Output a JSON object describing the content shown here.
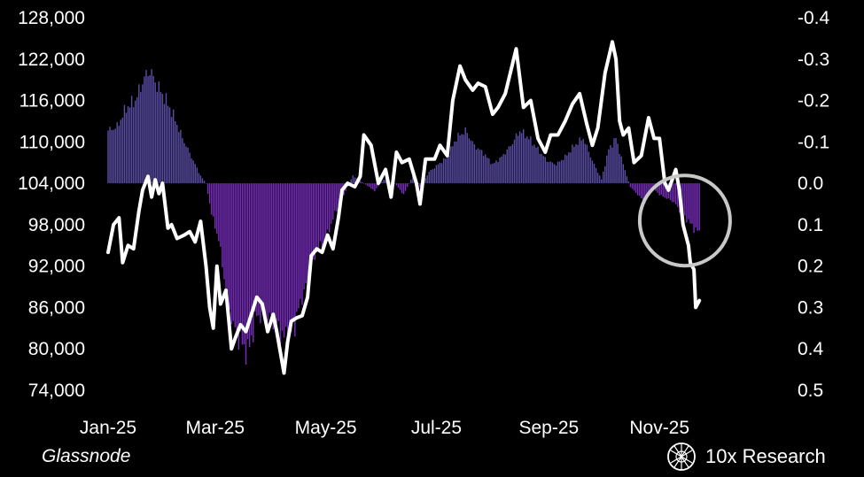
{
  "source": "Glassnode",
  "brand": {
    "name": "10x Research",
    "logo_icon": "lattice-circle-logo-icon"
  },
  "colors": {
    "background": "#000000",
    "price_line": "#ffffff",
    "bar_positive": "#5b4ea8",
    "bar_negative": "#7a2fc0",
    "highlight_circle": "#c8c8c8",
    "text": "#ffffff"
  },
  "chart_data": {
    "type": "bar+line",
    "title": "",
    "xlabel": "",
    "ylabel": "",
    "x_tick_labels": [
      "Jan-25",
      "Mar-25",
      "May-25",
      "Jul-25",
      "Sep-25",
      "Nov-25"
    ],
    "x_tick_dates": [
      "2025-01-01",
      "2025-03-01",
      "2025-05-01",
      "2025-07-01",
      "2025-09-01",
      "2025-11-01"
    ],
    "xlim": [
      "2025-01-01",
      "2025-12-31"
    ],
    "left_axis": {
      "tick_labels": [
        "128,000",
        "122,000",
        "116,000",
        "110,000",
        "104,000",
        "98,000",
        "92,000",
        "86,000",
        "80,000",
        "74,000"
      ],
      "ylim": [
        74000,
        128000
      ]
    },
    "right_axis": {
      "tick_labels": [
        "-0.4",
        "-0.3",
        "-0.2",
        "-0.1",
        "0.0",
        "0.1",
        "0.2",
        "0.3",
        "0.4",
        "0.5"
      ],
      "ylim": [
        -0.4,
        0.5
      ],
      "inverted": true
    },
    "annotation": "circle around early-to-mid November negative readings",
    "annotation_center": {
      "date": "2025-11-15",
      "value": 0.09
    },
    "series": [
      {
        "type": "line",
        "axis": "left",
        "points": [
          [
            "2025-01-01",
            94000
          ],
          [
            "2025-01-04",
            98000
          ],
          [
            "2025-01-07",
            99000
          ],
          [
            "2025-01-09",
            92500
          ],
          [
            "2025-01-12",
            95000
          ],
          [
            "2025-01-15",
            94500
          ],
          [
            "2025-01-18",
            100000
          ],
          [
            "2025-01-20",
            103000
          ],
          [
            "2025-01-23",
            105000
          ],
          [
            "2025-01-25",
            102000
          ],
          [
            "2025-01-27",
            104500
          ],
          [
            "2025-01-29",
            102500
          ],
          [
            "2025-01-31",
            104000
          ],
          [
            "2025-02-03",
            97500
          ],
          [
            "2025-02-05",
            98000
          ],
          [
            "2025-02-08",
            96000
          ],
          [
            "2025-02-12",
            96500
          ],
          [
            "2025-02-15",
            97000
          ],
          [
            "2025-02-18",
            95500
          ],
          [
            "2025-02-21",
            98500
          ],
          [
            "2025-02-24",
            92000
          ],
          [
            "2025-02-26",
            86000
          ],
          [
            "2025-02-28",
            83000
          ],
          [
            "2025-03-02",
            92000
          ],
          [
            "2025-03-04",
            86500
          ],
          [
            "2025-03-07",
            88500
          ],
          [
            "2025-03-10",
            80000
          ],
          [
            "2025-03-12",
            81500
          ],
          [
            "2025-03-15",
            83500
          ],
          [
            "2025-03-18",
            82500
          ],
          [
            "2025-03-21",
            85000
          ],
          [
            "2025-03-24",
            87500
          ],
          [
            "2025-03-27",
            86500
          ],
          [
            "2025-03-30",
            82500
          ],
          [
            "2025-04-02",
            85000
          ],
          [
            "2025-04-04",
            82500
          ],
          [
            "2025-04-06",
            79500
          ],
          [
            "2025-04-08",
            76500
          ],
          [
            "2025-04-10",
            81000
          ],
          [
            "2025-04-12",
            84000
          ],
          [
            "2025-04-15",
            84500
          ],
          [
            "2025-04-18",
            84800
          ],
          [
            "2025-04-21",
            87500
          ],
          [
            "2025-04-23",
            93500
          ],
          [
            "2025-04-26",
            94500
          ],
          [
            "2025-04-29",
            94000
          ],
          [
            "2025-05-02",
            96500
          ],
          [
            "2025-05-05",
            94500
          ],
          [
            "2025-05-08",
            99000
          ],
          [
            "2025-05-10",
            103000
          ],
          [
            "2025-05-13",
            104000
          ],
          [
            "2025-05-17",
            103500
          ],
          [
            "2025-05-20",
            105000
          ],
          [
            "2025-05-22",
            111000
          ],
          [
            "2025-05-26",
            109500
          ],
          [
            "2025-05-30",
            104000
          ],
          [
            "2025-06-03",
            106000
          ],
          [
            "2025-06-06",
            102000
          ],
          [
            "2025-06-09",
            108500
          ],
          [
            "2025-06-12",
            107000
          ],
          [
            "2025-06-16",
            107500
          ],
          [
            "2025-06-20",
            104000
          ],
          [
            "2025-06-22",
            101000
          ],
          [
            "2025-06-25",
            107500
          ],
          [
            "2025-06-30",
            107500
          ],
          [
            "2025-07-03",
            109500
          ],
          [
            "2025-07-07",
            108000
          ],
          [
            "2025-07-10",
            116000
          ],
          [
            "2025-07-14",
            121000
          ],
          [
            "2025-07-17",
            119000
          ],
          [
            "2025-07-21",
            117500
          ],
          [
            "2025-07-24",
            118500
          ],
          [
            "2025-07-28",
            118000
          ],
          [
            "2025-08-01",
            114000
          ],
          [
            "2025-08-04",
            115000
          ],
          [
            "2025-08-08",
            117000
          ],
          [
            "2025-08-14",
            123500
          ],
          [
            "2025-08-18",
            115000
          ],
          [
            "2025-08-22",
            116000
          ],
          [
            "2025-08-26",
            110500
          ],
          [
            "2025-08-30",
            108500
          ],
          [
            "2025-09-02",
            111000
          ],
          [
            "2025-09-06",
            111000
          ],
          [
            "2025-09-10",
            113000
          ],
          [
            "2025-09-14",
            115500
          ],
          [
            "2025-09-18",
            117000
          ],
          [
            "2025-09-22",
            112500
          ],
          [
            "2025-09-25",
            109500
          ],
          [
            "2025-09-28",
            112000
          ],
          [
            "2025-10-02",
            120000
          ],
          [
            "2025-10-06",
            124500
          ],
          [
            "2025-10-08",
            122000
          ],
          [
            "2025-10-10",
            113000
          ],
          [
            "2025-10-12",
            111000
          ],
          [
            "2025-10-15",
            112000
          ],
          [
            "2025-10-18",
            107000
          ],
          [
            "2025-10-22",
            108000
          ],
          [
            "2025-10-26",
            113500
          ],
          [
            "2025-10-29",
            110500
          ],
          [
            "2025-11-01",
            110500
          ],
          [
            "2025-11-04",
            104000
          ],
          [
            "2025-11-06",
            103000
          ],
          [
            "2025-11-10",
            106000
          ],
          [
            "2025-11-12",
            103000
          ],
          [
            "2025-11-14",
            98000
          ],
          [
            "2025-11-17",
            95000
          ],
          [
            "2025-11-18",
            92500
          ],
          [
            "2025-11-20",
            91500
          ],
          [
            "2025-11-21",
            86000
          ],
          [
            "2025-11-23",
            87000
          ]
        ]
      },
      {
        "type": "bar",
        "axis": "right",
        "anchors": [
          [
            "2025-01-01",
            -0.14
          ],
          [
            "2025-01-06",
            -0.15
          ],
          [
            "2025-01-11",
            -0.2
          ],
          [
            "2025-01-16",
            -0.22
          ],
          [
            "2025-01-21",
            -0.28
          ],
          [
            "2025-01-24",
            -0.3
          ],
          [
            "2025-01-28",
            -0.26
          ],
          [
            "2025-02-02",
            -0.22
          ],
          [
            "2025-02-06",
            -0.18
          ],
          [
            "2025-02-11",
            -0.12
          ],
          [
            "2025-02-16",
            -0.07
          ],
          [
            "2025-02-21",
            -0.02
          ],
          [
            "2025-02-24",
            0.0
          ],
          [
            "2025-02-27",
            0.08
          ],
          [
            "2025-03-03",
            0.15
          ],
          [
            "2025-03-07",
            0.28
          ],
          [
            "2025-03-11",
            0.38
          ],
          [
            "2025-03-15",
            0.42
          ],
          [
            "2025-03-19",
            0.45
          ],
          [
            "2025-03-24",
            0.35
          ],
          [
            "2025-03-29",
            0.35
          ],
          [
            "2025-04-03",
            0.37
          ],
          [
            "2025-04-08",
            0.41
          ],
          [
            "2025-04-13",
            0.39
          ],
          [
            "2025-04-18",
            0.3
          ],
          [
            "2025-04-22",
            0.25
          ],
          [
            "2025-04-26",
            0.18
          ],
          [
            "2025-05-01",
            0.15
          ],
          [
            "2025-05-06",
            0.08
          ],
          [
            "2025-05-11",
            0.03
          ],
          [
            "2025-05-16",
            -0.02
          ],
          [
            "2025-05-22",
            0.0
          ],
          [
            "2025-05-28",
            0.02
          ],
          [
            "2025-06-02",
            -0.01
          ],
          [
            "2025-06-08",
            0.0
          ],
          [
            "2025-06-13",
            0.03
          ],
          [
            "2025-06-18",
            -0.02
          ],
          [
            "2025-06-22",
            0.01
          ],
          [
            "2025-06-27",
            -0.03
          ],
          [
            "2025-07-02",
            -0.05
          ],
          [
            "2025-07-07",
            -0.07
          ],
          [
            "2025-07-12",
            -0.12
          ],
          [
            "2025-07-17",
            -0.14
          ],
          [
            "2025-07-22",
            -0.1
          ],
          [
            "2025-07-27",
            -0.08
          ],
          [
            "2025-08-01",
            -0.05
          ],
          [
            "2025-08-06",
            -0.07
          ],
          [
            "2025-08-11",
            -0.1
          ],
          [
            "2025-08-16",
            -0.14
          ],
          [
            "2025-08-21",
            -0.12
          ],
          [
            "2025-08-26",
            -0.09
          ],
          [
            "2025-08-31",
            -0.06
          ],
          [
            "2025-09-05",
            -0.05
          ],
          [
            "2025-09-10",
            -0.07
          ],
          [
            "2025-09-15",
            -0.1
          ],
          [
            "2025-09-20",
            -0.12
          ],
          [
            "2025-09-25",
            -0.06
          ],
          [
            "2025-09-30",
            -0.01
          ],
          [
            "2025-10-04",
            -0.09
          ],
          [
            "2025-10-08",
            -0.12
          ],
          [
            "2025-10-12",
            -0.05
          ],
          [
            "2025-10-16",
            0.01
          ],
          [
            "2025-10-20",
            0.03
          ],
          [
            "2025-10-24",
            0.05
          ],
          [
            "2025-10-28",
            0.01
          ],
          [
            "2025-11-01",
            0.03
          ],
          [
            "2025-11-05",
            0.04
          ],
          [
            "2025-11-09",
            0.05
          ],
          [
            "2025-11-13",
            0.08
          ],
          [
            "2025-11-17",
            0.1
          ],
          [
            "2025-11-20",
            0.12
          ],
          [
            "2025-11-23",
            0.13
          ]
        ]
      }
    ]
  }
}
